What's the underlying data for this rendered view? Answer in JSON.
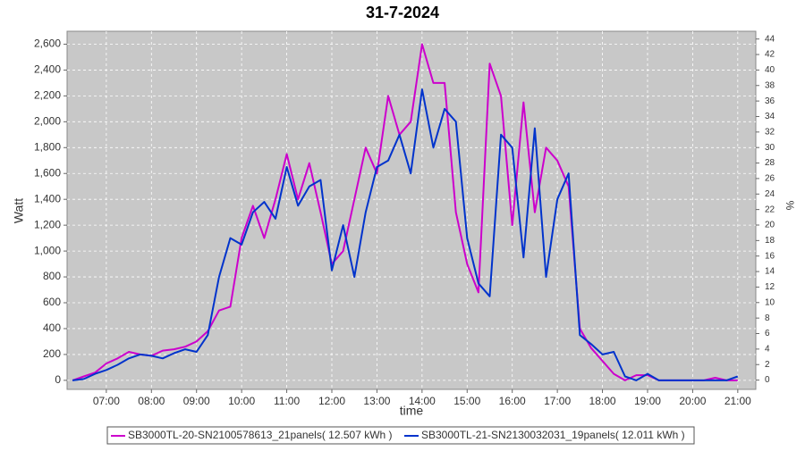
{
  "chart_data": {
    "type": "line",
    "title": "31-7-2024",
    "x_label": "time",
    "y_label": "Watt",
    "y2_label": "%",
    "grid": true,
    "x": [
      6.25,
      6.5,
      6.75,
      7.0,
      7.25,
      7.5,
      7.75,
      8.0,
      8.25,
      8.5,
      8.75,
      9.0,
      9.25,
      9.5,
      9.75,
      10.0,
      10.25,
      10.5,
      10.75,
      11.0,
      11.25,
      11.5,
      11.75,
      12.0,
      12.25,
      12.5,
      12.75,
      13.0,
      13.25,
      13.5,
      13.75,
      14.0,
      14.25,
      14.5,
      14.75,
      15.0,
      15.25,
      15.5,
      15.75,
      16.0,
      16.25,
      16.5,
      16.75,
      17.0,
      17.25,
      17.5,
      17.75,
      18.0,
      18.25,
      18.5,
      18.75,
      19.0,
      19.25,
      19.5,
      19.75,
      20.0,
      20.25,
      20.5,
      20.75,
      21.0
    ],
    "series": [
      {
        "name": "SB3000TL-20-SN2100578613_21panels( 12.507 kWh )",
        "color": "#cc00cc",
        "values": [
          0,
          30,
          60,
          130,
          170,
          220,
          200,
          190,
          230,
          240,
          260,
          300,
          380,
          540,
          570,
          1100,
          1350,
          1100,
          1400,
          1750,
          1400,
          1680,
          1300,
          900,
          1000,
          1400,
          1800,
          1600,
          2200,
          1900,
          2000,
          2600,
          2300,
          2300,
          1300,
          900,
          680,
          2450,
          2200,
          1200,
          2150,
          1300,
          1800,
          1700,
          1500,
          400,
          250,
          150,
          50,
          0,
          40,
          40,
          0,
          0,
          0,
          0,
          0,
          20,
          0,
          0
        ]
      },
      {
        "name": "SB3000TL-21-SN2130032031_19panels( 12.011 kWh )",
        "color": "#0033cc",
        "values": [
          0,
          10,
          50,
          80,
          120,
          170,
          200,
          190,
          170,
          210,
          240,
          220,
          350,
          800,
          1100,
          1050,
          1300,
          1380,
          1250,
          1650,
          1350,
          1500,
          1550,
          850,
          1200,
          800,
          1300,
          1650,
          1700,
          1900,
          1600,
          2250,
          1800,
          2100,
          2000,
          1100,
          750,
          650,
          1900,
          1800,
          950,
          1950,
          800,
          1400,
          1600,
          350,
          280,
          200,
          220,
          30,
          0,
          50,
          0,
          0,
          0,
          0,
          0,
          0,
          0,
          30
        ]
      }
    ],
    "xlim": [
      6.13,
      21.4
    ],
    "xticks": [
      {
        "value": 7,
        "label": "07:00"
      },
      {
        "value": 8,
        "label": "08:00"
      },
      {
        "value": 9,
        "label": "09:00"
      },
      {
        "value": 10,
        "label": "10:00"
      },
      {
        "value": 11,
        "label": "11:00"
      },
      {
        "value": 12,
        "label": "12:00"
      },
      {
        "value": 13,
        "label": "13:00"
      },
      {
        "value": 14,
        "label": "14:00"
      },
      {
        "value": 15,
        "label": "15:00"
      },
      {
        "value": 16,
        "label": "16:00"
      },
      {
        "value": 17,
        "label": "17:00"
      },
      {
        "value": 18,
        "label": "18:00"
      },
      {
        "value": 19,
        "label": "19:00"
      },
      {
        "value": 20,
        "label": "20:00"
      },
      {
        "value": 21,
        "label": "21:00"
      }
    ],
    "ylim": [
      -70,
      2700
    ],
    "yticks": [
      0,
      200,
      400,
      600,
      800,
      {
        "value": 1000,
        "label": "1,000"
      },
      {
        "value": 1200,
        "label": "1,200"
      },
      {
        "value": 1400,
        "label": "1,400"
      },
      {
        "value": 1600,
        "label": "1,600"
      },
      {
        "value": 1800,
        "label": "1,800"
      },
      {
        "value": 2000,
        "label": "2,000"
      },
      {
        "value": 2200,
        "label": "2,200"
      },
      {
        "value": 2400,
        "label": "2,400"
      },
      {
        "value": 2600,
        "label": "2,600"
      }
    ],
    "y2lim": [
      -1.2,
      45
    ],
    "y2ticks": [
      0,
      2,
      4,
      6,
      8,
      10,
      12,
      14,
      16,
      18,
      20,
      22,
      24,
      26,
      28,
      30,
      32,
      34,
      36,
      38,
      40,
      42,
      44
    ]
  }
}
